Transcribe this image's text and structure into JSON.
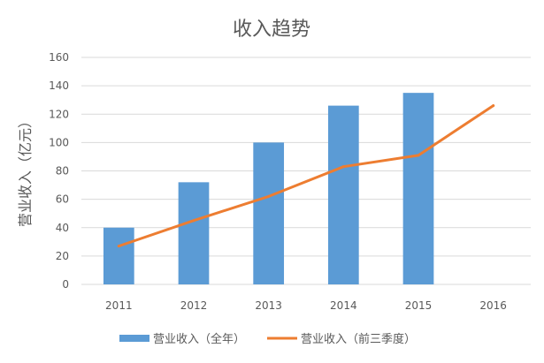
{
  "chart_data": {
    "type": "bar",
    "title": "收入趋势",
    "xlabel": "",
    "ylabel": "营业收入（亿元）",
    "ylim": [
      0,
      160
    ],
    "yticks": [
      0,
      20,
      40,
      60,
      80,
      100,
      120,
      140,
      160
    ],
    "categories": [
      "2011",
      "2012",
      "2013",
      "2014",
      "2015",
      "2016"
    ],
    "grid": true,
    "legend_position": "bottom",
    "series": [
      {
        "name": "营业收入（全年）",
        "type": "bar",
        "color": "#5b9bd5",
        "values": [
          40,
          72,
          100,
          126,
          135,
          null
        ]
      },
      {
        "name": "营业收入（前三季度）",
        "type": "line",
        "color": "#ed7d31",
        "values": [
          27,
          45,
          62,
          83,
          91,
          126
        ]
      }
    ]
  }
}
